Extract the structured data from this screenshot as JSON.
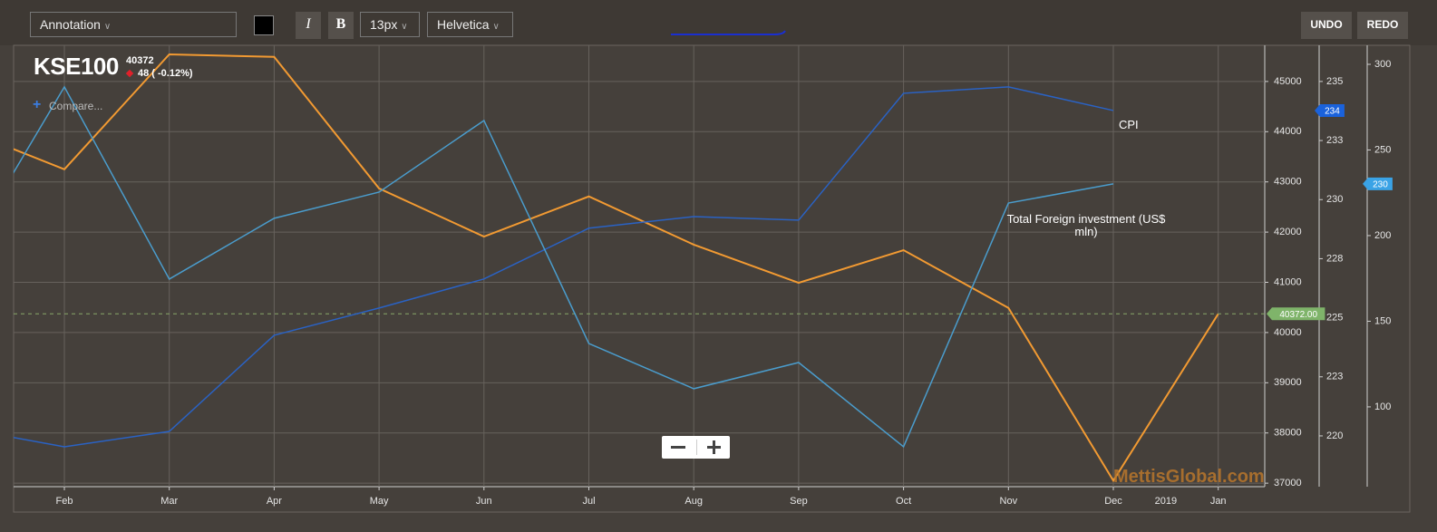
{
  "toolbar": {
    "annotation": "Annotation",
    "italic": "I",
    "bold": "B",
    "font_size": "13px",
    "font": "Helvetica",
    "undo": "UNDO",
    "redo": "REDO"
  },
  "chart_data": {
    "type": "line",
    "last_price": 40372,
    "change": "48 ( -0.12%)",
    "compare": "Compare...",
    "watermark": "MettisGlobal.com",
    "categories": [
      null,
      "Feb",
      "Mar",
      "Apr",
      "May",
      "Jun",
      "Jul",
      "Aug",
      "Sep",
      "Oct",
      "Nov",
      "Dec",
      "Jan"
    ],
    "year_label": "2019",
    "series": [
      {
        "name": "KSE100",
        "color": "#f29a32",
        "axis": "y",
        "tag": "40372.00",
        "tag_color": "#7fb46a",
        "values": [
          44080,
          43250,
          45540,
          45490,
          42870,
          41910,
          42710,
          41750,
          40990,
          41640,
          40490,
          37050,
          40372
        ]
      },
      {
        "name": "CPI",
        "color": "#2a62c4",
        "axis": "y2",
        "tag": "234",
        "tag_color": "#1a62dc",
        "values": [
          220.35,
          219.54,
          220.19,
          224.26,
          225.41,
          226.64,
          228.79,
          229.28,
          229.13,
          234.5,
          234.77,
          233.77,
          null
        ]
      },
      {
        "name": "Total Foreign investment (US$ mln)",
        "color": "#4a9ccc",
        "axis": "y3",
        "tag": "230",
        "tag_color": "#3aa3e6",
        "values": [
          183.6,
          286.8,
          174.6,
          210.1,
          225.4,
          267.2,
          137.0,
          110.6,
          125.9,
          76.7,
          219.0,
          230.2,
          null
        ]
      }
    ],
    "ylim": [
      36930,
      45720
    ],
    "yticks": [
      37000,
      38000,
      39000,
      40000,
      41000,
      42000,
      43000,
      44000,
      45000
    ],
    "y2lim": [
      217.85,
      236.53
    ],
    "y2ticks": [
      220,
      {
        "value": 222.5,
        "label": "223"
      },
      225,
      {
        "value": 227.5,
        "label": "228"
      },
      230,
      {
        "value": 232.5,
        "label": "233"
      },
      235
    ],
    "y3lim": [
      53.4,
      311.1
    ],
    "y3ticks": [
      100,
      150,
      200,
      250,
      300
    ],
    "grid": true
  }
}
